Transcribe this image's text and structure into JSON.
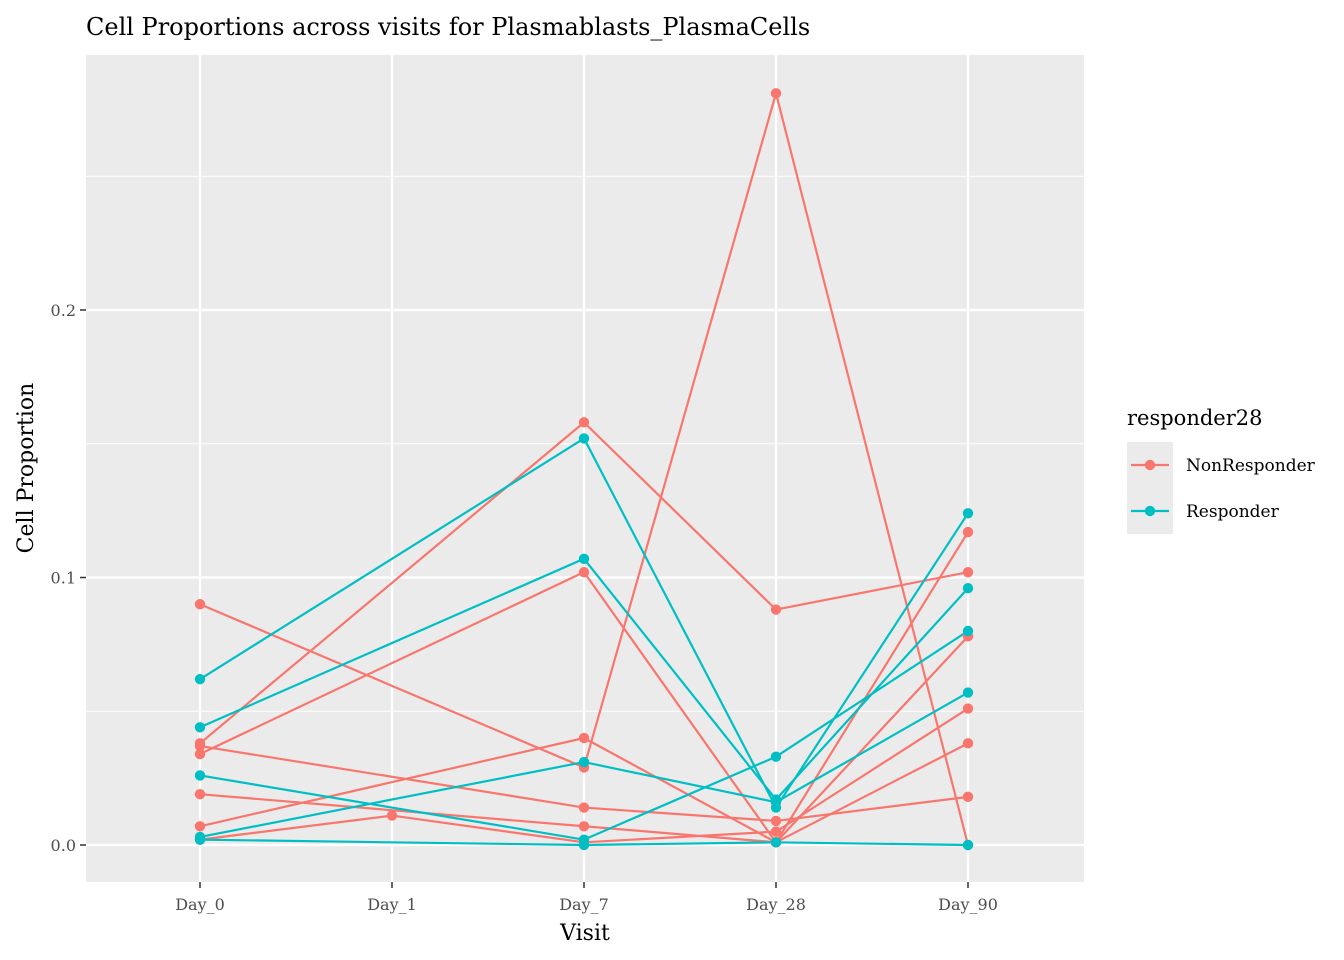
{
  "chart_data": {
    "type": "line",
    "title": "Cell Proportions across visits for Plasmablasts_PlasmaCells",
    "xlabel": "Visit",
    "ylabel": "Cell Proportion",
    "x": [
      "Day_0",
      "Day_1",
      "Day_7",
      "Day_28",
      "Day_90"
    ],
    "y_ticks": [
      "0.0",
      "0.1",
      "0.2"
    ],
    "y_tick_values": [
      0.0,
      0.1,
      0.2
    ],
    "ylim": [
      -0.0135,
      0.2935
    ],
    "grid": true,
    "legend": {
      "title": "responder28",
      "position": "right",
      "entries": [
        "NonResponder",
        "Responder"
      ]
    },
    "series_colors": {
      "NonResponder": "#F8766D",
      "Responder": "#00BFC4"
    },
    "series": [
      {
        "group": "NonResponder",
        "points": [
          [
            "Day_0",
            0.034
          ],
          [
            "Day_7",
            0.102
          ],
          [
            "Day_28",
            0.001
          ],
          [
            "Day_90",
            0.117
          ]
        ]
      },
      {
        "group": "NonResponder",
        "points": [
          [
            "Day_0",
            0.09
          ],
          [
            "Day_7",
            0.029
          ],
          [
            "Day_28",
            0.281
          ],
          [
            "Day_90",
            0.0
          ]
        ]
      },
      {
        "group": "NonResponder",
        "points": [
          [
            "Day_0",
            0.038
          ],
          [
            "Day_7",
            0.158
          ],
          [
            "Day_28",
            0.088
          ],
          [
            "Day_90",
            0.102
          ]
        ]
      },
      {
        "group": "NonResponder",
        "points": [
          [
            "Day_0",
            0.007
          ],
          [
            "Day_7",
            0.04
          ],
          [
            "Day_28",
            0.001
          ],
          [
            "Day_90",
            0.078
          ]
        ]
      },
      {
        "group": "NonResponder",
        "points": [
          [
            "Day_0",
            0.037
          ],
          [
            "Day_7",
            0.014
          ],
          [
            "Day_28",
            0.009
          ],
          [
            "Day_90",
            0.018
          ]
        ]
      },
      {
        "group": "NonResponder",
        "points": [
          [
            "Day_0",
            0.019
          ],
          [
            "Day_7",
            0.007
          ],
          [
            "Day_28",
            0.001
          ],
          [
            "Day_90",
            0.038
          ]
        ]
      },
      {
        "group": "NonResponder",
        "points": [
          [
            "Day_0",
            0.002
          ],
          [
            "Day_1",
            0.011
          ],
          [
            "Day_7",
            0.001
          ],
          [
            "Day_28",
            0.005
          ],
          [
            "Day_90",
            0.051
          ]
        ]
      },
      {
        "group": "Responder",
        "points": [
          [
            "Day_0",
            0.062
          ],
          [
            "Day_7",
            0.152
          ],
          [
            "Day_28",
            0.014
          ],
          [
            "Day_90",
            0.124
          ]
        ]
      },
      {
        "group": "Responder",
        "points": [
          [
            "Day_0",
            0.044
          ],
          [
            "Day_7",
            0.107
          ],
          [
            "Day_28",
            0.017
          ],
          [
            "Day_90",
            0.096
          ]
        ]
      },
      {
        "group": "Responder",
        "points": [
          [
            "Day_0",
            0.026
          ],
          [
            "Day_7",
            0.002
          ],
          [
            "Day_28",
            0.033
          ],
          [
            "Day_90",
            0.08
          ]
        ]
      },
      {
        "group": "Responder",
        "points": [
          [
            "Day_0",
            0.003
          ],
          [
            "Day_7",
            0.031
          ],
          [
            "Day_28",
            0.016
          ],
          [
            "Day_90",
            0.057
          ]
        ]
      },
      {
        "group": "Responder",
        "points": [
          [
            "Day_0",
            0.002
          ],
          [
            "Day_7",
            0.0
          ],
          [
            "Day_28",
            0.001
          ],
          [
            "Day_90",
            0.0
          ]
        ]
      }
    ]
  }
}
